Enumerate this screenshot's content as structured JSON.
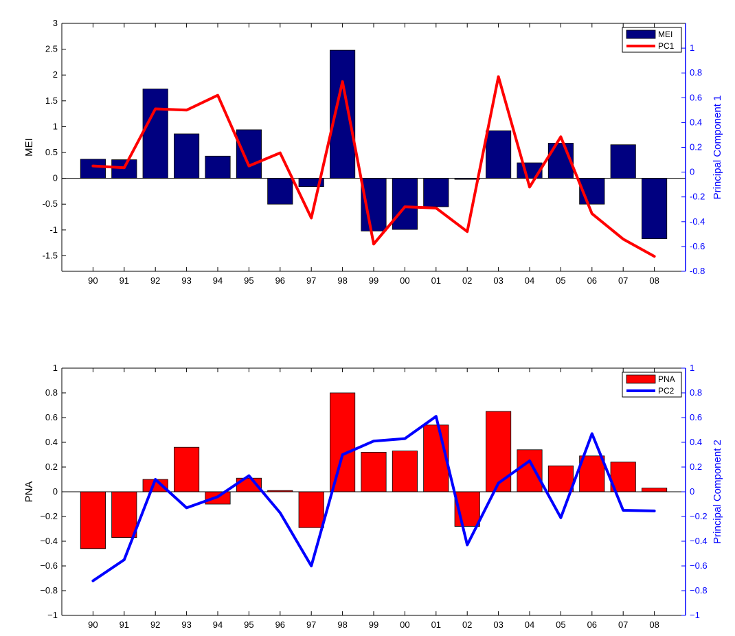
{
  "chart_data": [
    {
      "type": "bar",
      "categories": [
        "90",
        "91",
        "92",
        "93",
        "94",
        "95",
        "96",
        "97",
        "98",
        "99",
        "00",
        "01",
        "02",
        "03",
        "04",
        "05",
        "06",
        "07",
        "08"
      ],
      "ylabel": "MEI",
      "ylim": [
        -1.8,
        3
      ],
      "yticks": [
        "-1.5",
        "-1",
        "-0.5",
        "0",
        "0.5",
        "1",
        "1.5",
        "2",
        "2.5",
        "3"
      ],
      "ylabel_right": "Principal Component 1",
      "ylim_right": [
        -0.8,
        1.2
      ],
      "yticks_right": [
        "-0.8",
        "-0.6",
        "-0.4",
        "-0.2",
        "0",
        "0.2",
        "0.4",
        "0.6",
        "0.8",
        "1"
      ],
      "legend_position": "top-right",
      "bar_color": "#000080",
      "line_color": "#ff0000",
      "series": [
        {
          "name": "MEI",
          "kind": "bar",
          "axis": "left",
          "values": [
            0.37,
            0.36,
            1.73,
            0.86,
            0.43,
            0.94,
            -0.5,
            -0.16,
            2.48,
            -1.02,
            -0.99,
            -0.55,
            -0.02,
            0.92,
            0.3,
            0.68,
            -0.5,
            0.65,
            -1.17
          ]
        },
        {
          "name": "PC1",
          "kind": "line",
          "axis": "right",
          "values": [
            0.05,
            0.035,
            0.51,
            0.5,
            0.62,
            0.05,
            0.155,
            -0.37,
            0.73,
            -0.58,
            -0.28,
            -0.29,
            -0.48,
            0.77,
            -0.12,
            0.285,
            -0.335,
            -0.54,
            -0.68
          ]
        }
      ]
    },
    {
      "type": "bar",
      "categories": [
        "90",
        "91",
        "92",
        "93",
        "94",
        "95",
        "96",
        "97",
        "98",
        "99",
        "00",
        "01",
        "02",
        "03",
        "04",
        "05",
        "06",
        "07",
        "08"
      ],
      "ylabel": "PNA",
      "ylim": [
        -1,
        1
      ],
      "yticks": [
        "−1",
        "−0.8",
        "−0.6",
        "−0.4",
        "−0.2",
        "0",
        "0.2",
        "0.4",
        "0.6",
        "0.8",
        "1"
      ],
      "ylabel_right": "Principal Component 2",
      "ylim_right": [
        -1,
        1
      ],
      "yticks_right": [
        "−1",
        "−0.8",
        "−0.6",
        "−0.4",
        "−0.2",
        "0",
        "0.2",
        "0.4",
        "0.6",
        "0.8",
        "1"
      ],
      "legend_position": "top-right",
      "bar_color": "#ff0000",
      "line_color": "#0000ff",
      "series": [
        {
          "name": "PNA",
          "kind": "bar",
          "axis": "left",
          "values": [
            -0.46,
            -0.37,
            0.1,
            0.36,
            -0.1,
            0.11,
            0.01,
            -0.29,
            0.8,
            0.32,
            0.33,
            0.54,
            -0.28,
            0.65,
            0.34,
            0.21,
            0.29,
            0.24,
            0.03
          ]
        },
        {
          "name": "PC2",
          "kind": "line",
          "axis": "right",
          "values": [
            -0.72,
            -0.55,
            0.1,
            -0.13,
            -0.04,
            0.13,
            -0.17,
            -0.6,
            0.3,
            0.41,
            0.43,
            0.61,
            -0.43,
            0.07,
            0.25,
            -0.21,
            0.47,
            -0.15,
            -0.155
          ]
        }
      ]
    }
  ]
}
